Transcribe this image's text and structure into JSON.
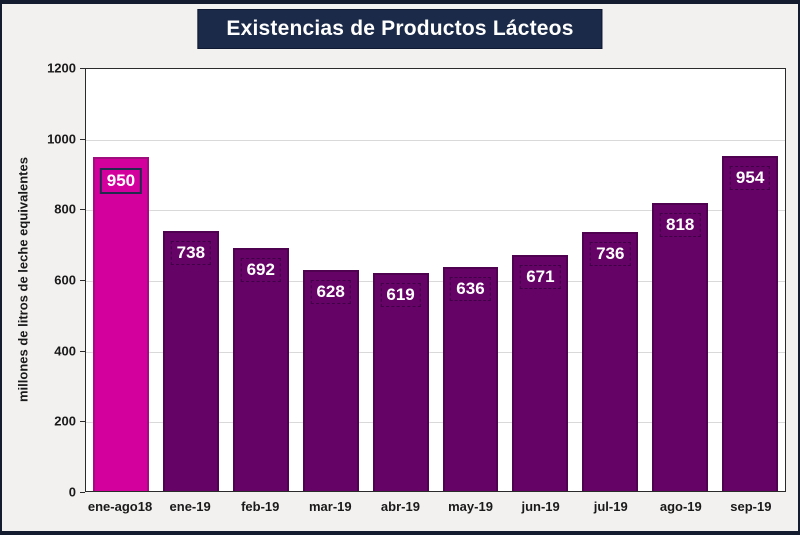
{
  "title": "Existencias de Productos Lácteos",
  "colors": {
    "background": "#F2F1EF",
    "frame_border": "#141C2F",
    "title_bg": "#1B2A48",
    "title_text": "#FFFFFF",
    "plot_bg": "#FFFFFF",
    "plot_border": "#2B2B2B",
    "gridline": "#D9D9D9",
    "axis_text": "#1A1A1A",
    "bar_default": "#660366",
    "bar_default_border": "#4F0250",
    "bar_highlight": "#D4009E",
    "bar_highlight_border": "#A00D7D",
    "bar_label_text": "#FFFFFF"
  },
  "chart_data": {
    "type": "bar",
    "title": "Existencias de Productos Lácteos",
    "categories": [
      "ene-ago18",
      "ene-19",
      "feb-19",
      "mar-19",
      "abr-19",
      "may-19",
      "jun-19",
      "jul-19",
      "ago-19",
      "sep-19"
    ],
    "values": [
      950,
      738,
      692,
      628,
      619,
      636,
      671,
      736,
      818,
      954
    ],
    "data_labels": [
      "950",
      "738",
      "692",
      "628",
      "619",
      "636",
      "671",
      "736",
      "818",
      "954"
    ],
    "highlight_index": 0,
    "xlabel": "",
    "ylabel": "millones de litros de leche equivalentes",
    "ylim": [
      0,
      1200
    ],
    "yticks": [
      0,
      200,
      400,
      600,
      800,
      1000,
      1200
    ],
    "grid": true,
    "legend": false
  }
}
